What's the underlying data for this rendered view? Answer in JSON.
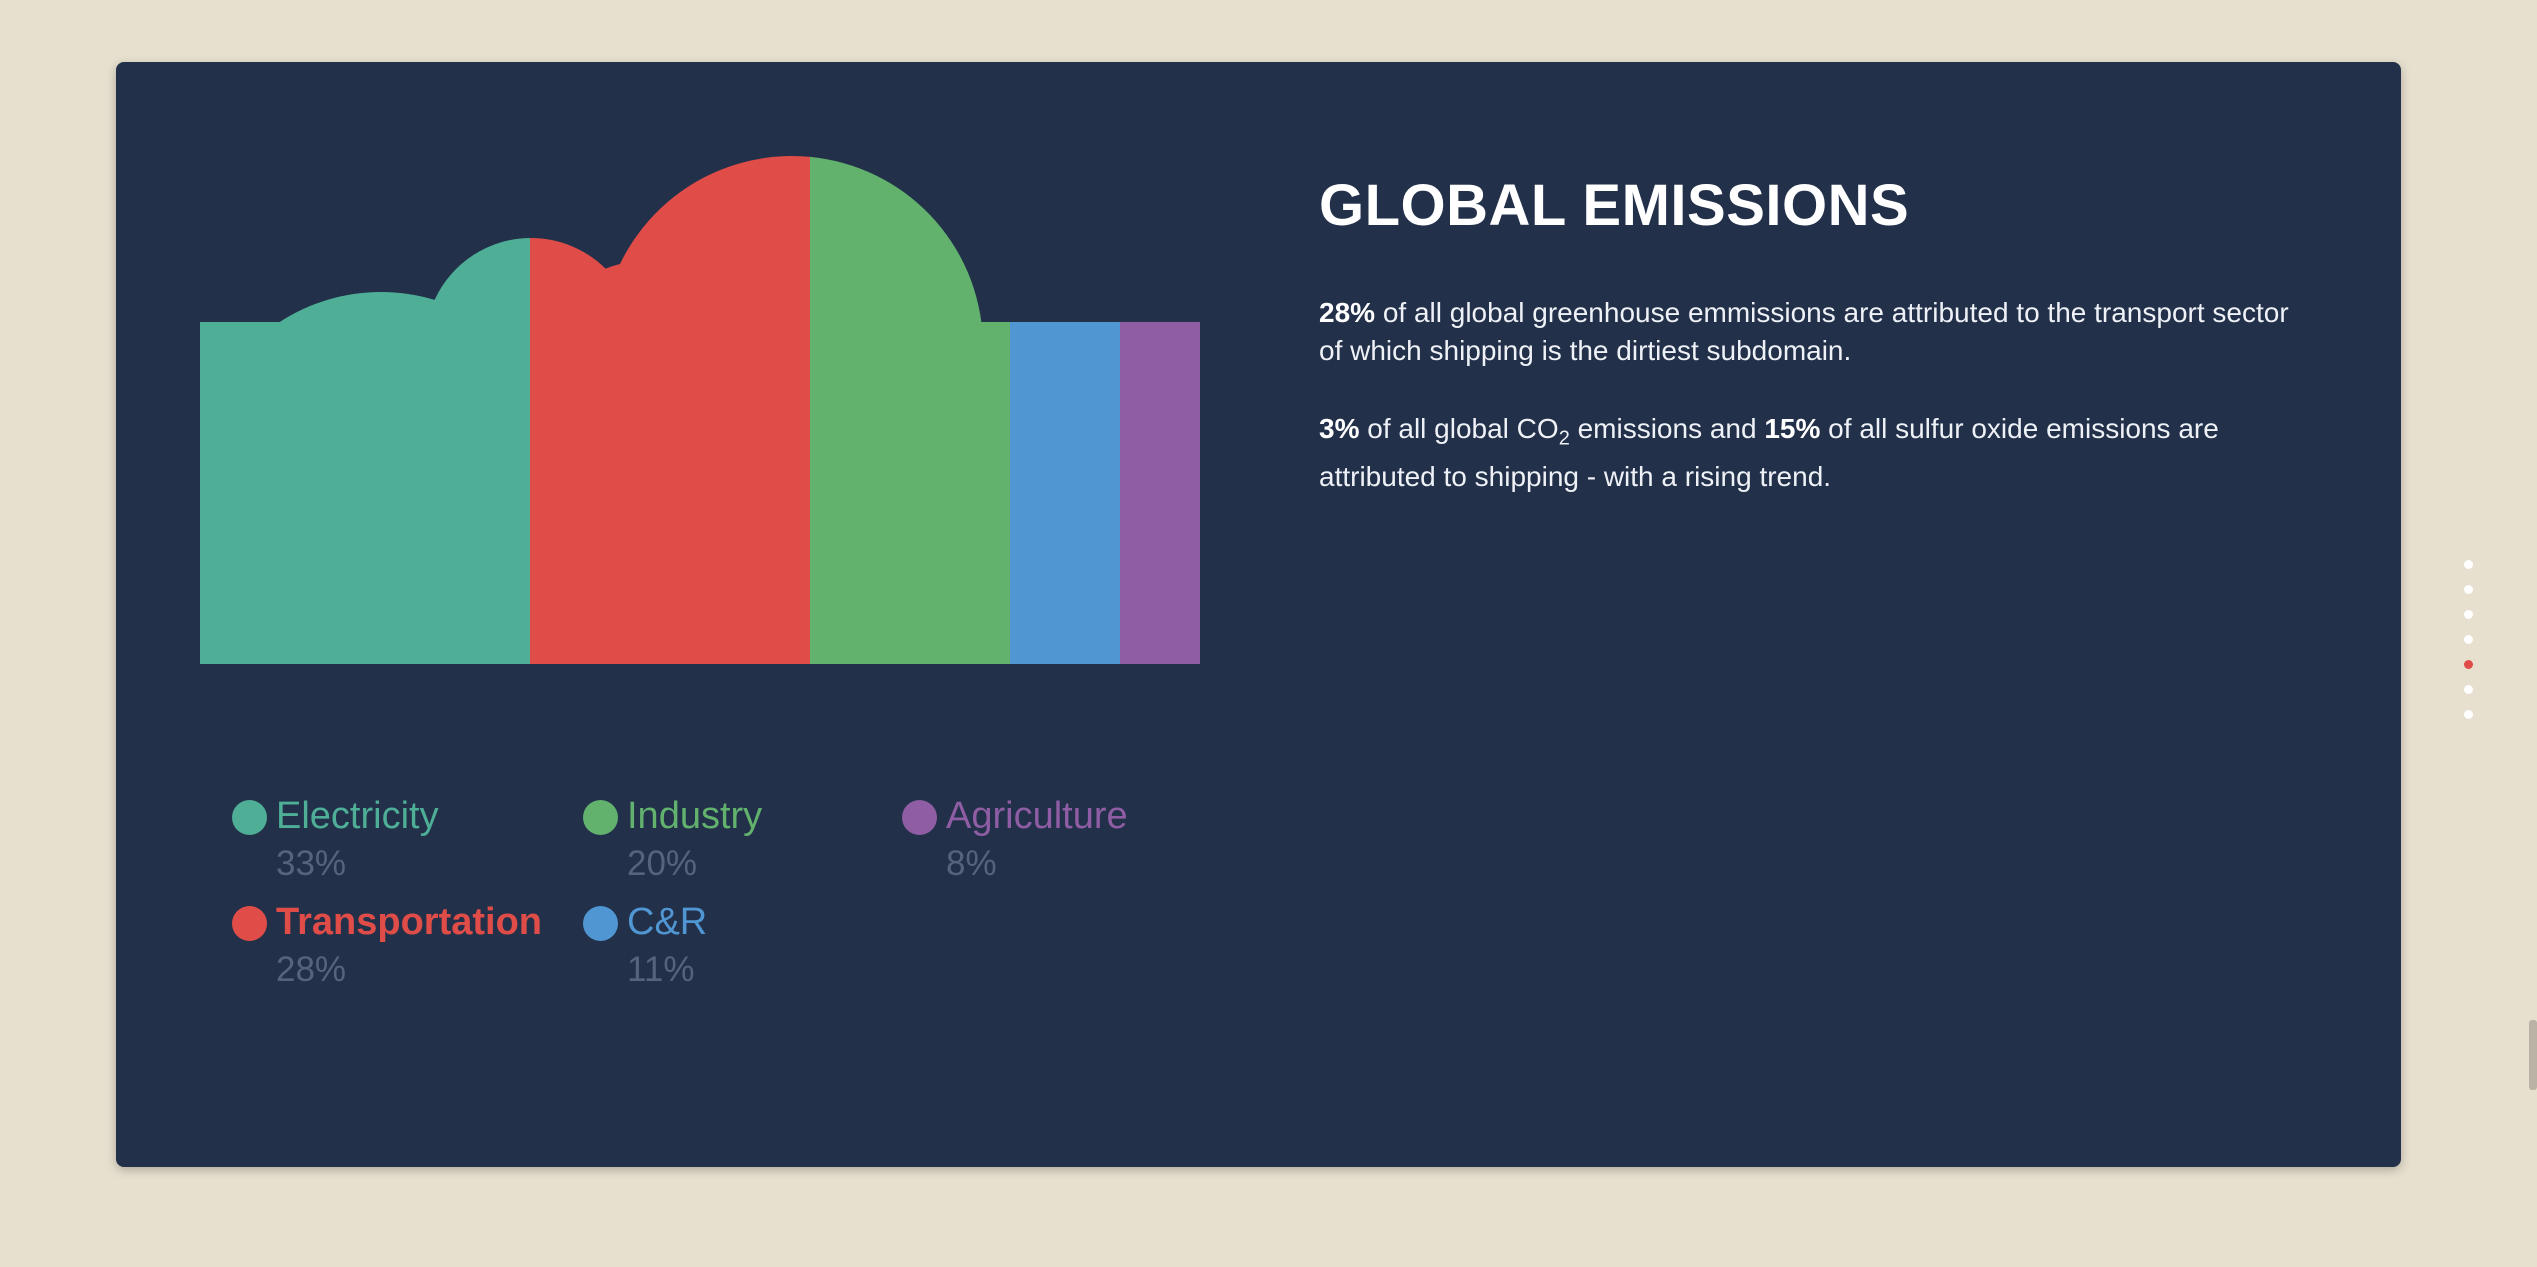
{
  "chart_data": {
    "type": "bar",
    "categories": [
      "Electricity",
      "Transportation",
      "Industry",
      "C&R",
      "Agriculture"
    ],
    "values": [
      33,
      28,
      20,
      11,
      8
    ],
    "unit": "%",
    "colors": [
      "#4eae96",
      "#e04d48",
      "#62b26e",
      "#5096d2",
      "#8e5da3"
    ],
    "active_category": "Transportation",
    "legend": [
      {
        "label": "Electricity",
        "value": "33%"
      },
      {
        "label": "Industry",
        "value": "20%"
      },
      {
        "label": "Agriculture",
        "value": "8%"
      },
      {
        "label": "Transportation",
        "value": "28%"
      },
      {
        "label": "C&R",
        "value": "11%"
      }
    ]
  },
  "article": {
    "title": "GLOBAL EMISSIONS",
    "p1_bold": "28%",
    "p1_text": " of all global greenhouse emmissions are attributed to the transport sector of which shipping is the dirtiest subdomain.",
    "p2_bold1": "3%",
    "p2_text1": " of all global CO",
    "p2_sub": "2",
    "p2_text2": " emissions and ",
    "p2_bold2": "15%",
    "p2_text3": " of all sulfur oxide emissions are attributed to shipping - with a rising trend."
  },
  "navigation": {
    "section_count": 7,
    "active_index": 4
  }
}
